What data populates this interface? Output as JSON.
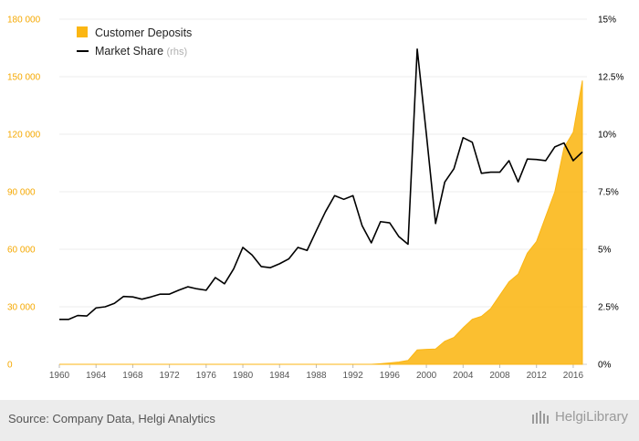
{
  "chart_data": {
    "type": "area+line",
    "x": [
      1960,
      1961,
      1962,
      1963,
      1964,
      1965,
      1966,
      1967,
      1968,
      1969,
      1970,
      1971,
      1972,
      1973,
      1974,
      1975,
      1976,
      1977,
      1978,
      1979,
      1980,
      1981,
      1982,
      1983,
      1984,
      1985,
      1986,
      1987,
      1988,
      1989,
      1990,
      1991,
      1992,
      1993,
      1994,
      1995,
      1996,
      1997,
      1998,
      1999,
      2000,
      2001,
      2002,
      2003,
      2004,
      2005,
      2006,
      2007,
      2008,
      2009,
      2010,
      2011,
      2012,
      2013,
      2014,
      2015,
      2016,
      2017
    ],
    "series": [
      {
        "name": "Customer Deposits",
        "axis": "left",
        "kind": "area",
        "color": "#fbb613",
        "values": [
          0,
          0,
          0,
          0,
          0,
          0,
          0,
          0,
          0,
          0,
          0,
          0,
          0,
          0,
          0,
          0,
          0,
          0,
          0,
          0,
          0,
          0,
          0,
          0,
          0,
          0,
          0,
          0,
          0,
          0,
          0,
          0,
          0,
          0,
          0,
          300,
          700,
          1200,
          2000,
          7500,
          7800,
          8000,
          12000,
          14000,
          19000,
          23500,
          25000,
          29000,
          36000,
          43000,
          47000,
          58000,
          64000,
          77000,
          90000,
          113000,
          121000,
          148000
        ]
      },
      {
        "name": "Market Share",
        "suffix": "(rhs)",
        "axis": "right",
        "kind": "line",
        "color": "#000000",
        "values": [
          1.95,
          1.95,
          2.12,
          2.1,
          2.45,
          2.5,
          2.65,
          2.95,
          2.93,
          2.83,
          2.93,
          3.05,
          3.05,
          3.22,
          3.37,
          3.28,
          3.22,
          3.77,
          3.5,
          4.15,
          5.08,
          4.75,
          4.25,
          4.2,
          4.37,
          4.58,
          5.08,
          4.95,
          5.8,
          6.63,
          7.33,
          7.17,
          7.33,
          6.02,
          5.28,
          6.2,
          6.15,
          5.55,
          5.22,
          13.7,
          10.0,
          6.12,
          7.92,
          8.5,
          9.85,
          9.65,
          8.3,
          8.35,
          8.35,
          8.85,
          7.93,
          8.92,
          8.9,
          8.85,
          9.45,
          9.62,
          8.85,
          9.23
        ]
      }
    ],
    "yleft": {
      "min": 0,
      "max": 180000,
      "ticks": [
        "0",
        "30 000",
        "60 000",
        "90 000",
        "120 000",
        "150 000",
        "180 000"
      ],
      "tick_values": [
        0,
        30000,
        60000,
        90000,
        120000,
        150000,
        180000
      ]
    },
    "yright": {
      "min": 0,
      "max": 15,
      "ticks": [
        "0%",
        "2.5%",
        "5%",
        "7.5%",
        "10%",
        "12.5%",
        "15%"
      ],
      "tick_values": [
        0,
        2.5,
        5,
        7.5,
        10,
        12.5,
        15
      ]
    },
    "xticks": [
      "1960",
      "1964",
      "1968",
      "1972",
      "1976",
      "1980",
      "1984",
      "1988",
      "1992",
      "1996",
      "2000",
      "2004",
      "2008",
      "2012",
      "2016"
    ],
    "xtick_values": [
      1960,
      1964,
      1968,
      1972,
      1976,
      1980,
      1984,
      1988,
      1992,
      1996,
      2000,
      2004,
      2008,
      2012,
      2016
    ],
    "legend": {
      "placement": "top-left"
    },
    "grid": "horizontal"
  },
  "footer": {
    "source": "Source: Company Data, Helgi Analytics",
    "brand": "HelgiLibrary"
  }
}
